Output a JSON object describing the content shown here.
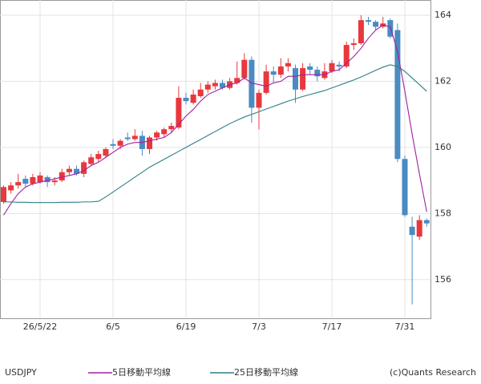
{
  "chart_data": {
    "type": "candlestick",
    "symbol": "USDJPY",
    "copyright": "(c)Quants Research",
    "categories": [
      null,
      null,
      null,
      null,
      null,
      "26/5/22",
      null,
      null,
      null,
      null,
      null,
      null,
      null,
      null,
      null,
      "6/5",
      null,
      null,
      null,
      null,
      null,
      null,
      null,
      null,
      null,
      "6/19",
      null,
      null,
      null,
      null,
      null,
      null,
      null,
      null,
      null,
      "7/3",
      null,
      null,
      null,
      null,
      null,
      null,
      null,
      null,
      null,
      "7/17",
      null,
      null,
      null,
      null,
      null,
      null,
      null,
      null,
      null,
      "7/31",
      null,
      null,
      null
    ],
    "open": [
      158.35,
      158.7,
      158.85,
      159.05,
      158.9,
      158.95,
      159.1,
      158.95,
      159.0,
      159.25,
      159.35,
      159.2,
      159.5,
      159.65,
      159.75,
      160.1,
      160.05,
      160.3,
      160.25,
      160.35,
      159.95,
      160.3,
      160.4,
      160.55,
      160.6,
      161.5,
      161.35,
      161.55,
      161.75,
      161.85,
      161.95,
      161.8,
      161.95,
      162.1,
      162.65,
      161.2,
      161.65,
      162.3,
      162.2,
      162.45,
      162.4,
      161.75,
      162.45,
      162.35,
      162.1,
      162.3,
      162.5,
      162.45,
      163.1,
      163.15,
      163.85,
      163.8,
      163.65,
      163.85,
      163.55,
      159.65,
      157.6,
      157.3,
      157.8
    ],
    "high": [
      158.85,
      158.95,
      159.2,
      159.15,
      159.2,
      159.25,
      159.15,
      159.1,
      159.35,
      159.45,
      159.45,
      159.6,
      159.8,
      159.9,
      160.0,
      160.25,
      160.25,
      160.45,
      160.55,
      160.5,
      160.35,
      160.5,
      160.6,
      160.75,
      161.85,
      161.65,
      161.75,
      161.95,
      162.0,
      162.05,
      162.05,
      162.1,
      162.6,
      162.85,
      162.75,
      161.75,
      162.5,
      162.45,
      162.7,
      162.7,
      162.5,
      162.55,
      162.55,
      162.45,
      162.55,
      162.65,
      162.6,
      163.2,
      163.3,
      164.0,
      163.95,
      163.85,
      163.95,
      163.9,
      163.75,
      159.75,
      157.9,
      157.95,
      157.85
    ],
    "low": [
      158.3,
      158.6,
      158.75,
      158.8,
      158.85,
      158.9,
      158.8,
      158.85,
      158.95,
      159.15,
      159.15,
      159.1,
      159.45,
      159.55,
      159.7,
      159.95,
      159.95,
      160.2,
      160.2,
      159.75,
      159.8,
      160.2,
      160.3,
      160.45,
      160.55,
      161.3,
      161.3,
      161.5,
      161.65,
      161.75,
      161.75,
      161.75,
      161.9,
      162.05,
      160.75,
      160.55,
      161.6,
      161.95,
      162.1,
      162.3,
      161.35,
      161.7,
      162.2,
      162.0,
      162.05,
      162.25,
      162.3,
      162.4,
      162.95,
      163.1,
      163.7,
      163.55,
      163.6,
      163.3,
      159.55,
      157.9,
      155.25,
      157.2,
      157.6
    ],
    "close": [
      158.8,
      158.85,
      158.95,
      158.9,
      159.1,
      159.15,
      158.95,
      159.0,
      159.25,
      159.35,
      159.2,
      159.55,
      159.7,
      159.8,
      159.95,
      160.05,
      160.2,
      160.25,
      160.35,
      159.95,
      160.3,
      160.45,
      160.55,
      160.65,
      161.5,
      161.4,
      161.6,
      161.75,
      161.9,
      161.95,
      161.8,
      162.0,
      162.1,
      162.65,
      161.2,
      161.65,
      162.3,
      162.2,
      162.45,
      162.55,
      161.75,
      162.4,
      162.35,
      162.15,
      162.3,
      162.55,
      162.45,
      163.1,
      163.15,
      163.85,
      163.8,
      163.65,
      163.75,
      163.35,
      159.65,
      157.95,
      157.35,
      157.8,
      157.7
    ],
    "up_color": "#e8383d",
    "down_color": "#4a8bc2",
    "series": [
      {
        "name": "5日移動平均線",
        "color": "#a020a0",
        "values": [
          157.95,
          158.3,
          158.6,
          158.8,
          158.9,
          158.95,
          159.0,
          159.05,
          159.1,
          159.15,
          159.2,
          159.3,
          159.45,
          159.55,
          159.7,
          159.85,
          160.0,
          160.1,
          160.15,
          160.15,
          160.2,
          160.25,
          160.3,
          160.45,
          160.7,
          160.95,
          161.15,
          161.4,
          161.6,
          161.7,
          161.8,
          161.9,
          161.95,
          162.1,
          161.95,
          161.9,
          161.85,
          161.95,
          162.0,
          162.15,
          162.15,
          162.2,
          162.2,
          162.2,
          162.2,
          162.3,
          162.35,
          162.55,
          162.75,
          163.0,
          163.3,
          163.55,
          163.7,
          163.65,
          162.9,
          161.7,
          160.4,
          159.2,
          158.05
        ]
      },
      {
        "name": "25日移動平均線",
        "color": "#2e7f86",
        "values": [
          158.35,
          158.35,
          158.34,
          158.34,
          158.33,
          158.33,
          158.33,
          158.33,
          158.34,
          158.34,
          158.34,
          158.35,
          158.35,
          158.37,
          158.5,
          158.65,
          158.8,
          158.95,
          159.1,
          159.25,
          159.4,
          159.52,
          159.64,
          159.76,
          159.88,
          160.0,
          160.12,
          160.24,
          160.36,
          160.48,
          160.6,
          160.72,
          160.82,
          160.92,
          161.0,
          161.08,
          161.16,
          161.24,
          161.32,
          161.4,
          161.47,
          161.54,
          161.6,
          161.66,
          161.72,
          161.8,
          161.88,
          161.96,
          162.04,
          162.13,
          162.23,
          162.33,
          162.43,
          162.5,
          162.45,
          162.3,
          162.1,
          161.9,
          161.7
        ]
      }
    ],
    "ylim": [
      154.83,
      164.46
    ],
    "yticks": [
      156,
      158,
      160,
      162,
      164
    ],
    "grid": true
  }
}
